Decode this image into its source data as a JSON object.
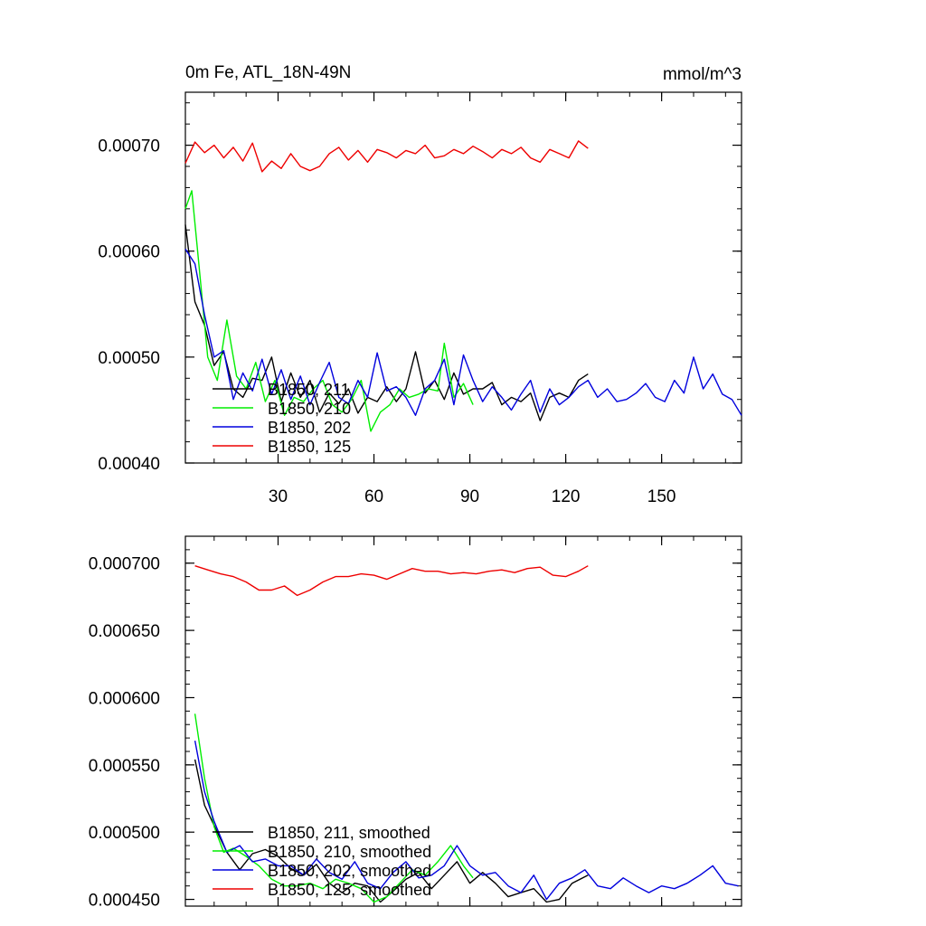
{
  "chart_data": [
    {
      "type": "line",
      "title_left": "0m Fe, ATL_18N-49N",
      "title_right": "mmol/m^3",
      "xlim": [
        1,
        175
      ],
      "ylim": [
        0.0004,
        0.00075
      ],
      "xticks": [
        30,
        60,
        90,
        120,
        150
      ],
      "xtick_labels": [
        "30",
        "60",
        "90",
        "120",
        "150"
      ],
      "yticks": [
        0.0004,
        0.0005,
        0.0006,
        0.0007
      ],
      "ytick_labels": [
        "0.00040",
        "0.00050",
        "0.00060",
        "0.00070"
      ],
      "grid": false,
      "legend_position": "bottom-left",
      "series": [
        {
          "name": "B1850, 211",
          "color": "#000000",
          "x": [
            1,
            4,
            7,
            10,
            13,
            16,
            19,
            22,
            25,
            28,
            31,
            34,
            37,
            40,
            43,
            46,
            49,
            52,
            55,
            58,
            61,
            64,
            67,
            70,
            73,
            76,
            79,
            82,
            85,
            88,
            91,
            94,
            97,
            100,
            103,
            106,
            109,
            112,
            115,
            118,
            121,
            124,
            127
          ],
          "values": [
            0.000625,
            0.000552,
            0.00053,
            0.000492,
            0.000505,
            0.00047,
            0.000462,
            0.00048,
            0.000478,
            0.0005,
            0.000458,
            0.000485,
            0.000462,
            0.000478,
            0.000448,
            0.000466,
            0.000456,
            0.00047,
            0.000447,
            0.000462,
            0.000458,
            0.000472,
            0.000458,
            0.00047,
            0.000505,
            0.000466,
            0.000478,
            0.00046,
            0.000485,
            0.000465,
            0.00047,
            0.00047,
            0.000476,
            0.000455,
            0.000462,
            0.000458,
            0.000466,
            0.00044,
            0.000462,
            0.000466,
            0.000462,
            0.000478,
            0.000484
          ]
        },
        {
          "name": "B1850, 210",
          "color": "#00ee00",
          "x": [
            1,
            3,
            5,
            8,
            11,
            14,
            17,
            20,
            23,
            26,
            29,
            32,
            35,
            38,
            41,
            44,
            47,
            50,
            53,
            56,
            59,
            62,
            65,
            68,
            71,
            74,
            77,
            80,
            82,
            85,
            88,
            91
          ],
          "values": [
            0.00064,
            0.000657,
            0.000595,
            0.0005,
            0.000478,
            0.000535,
            0.000482,
            0.00047,
            0.000495,
            0.000458,
            0.000478,
            0.000445,
            0.000462,
            0.000458,
            0.00047,
            0.000478,
            0.000455,
            0.000448,
            0.00046,
            0.000478,
            0.00043,
            0.000448,
            0.000455,
            0.00047,
            0.000462,
            0.000465,
            0.00047,
            0.000468,
            0.000513,
            0.000462,
            0.000475,
            0.000455
          ]
        },
        {
          "name": "B1850, 202",
          "color": "#0000dd",
          "x": [
            1,
            4,
            7,
            10,
            13,
            16,
            19,
            22,
            25,
            28,
            31,
            34,
            37,
            40,
            43,
            46,
            49,
            52,
            55,
            58,
            61,
            64,
            67,
            70,
            73,
            76,
            79,
            82,
            85,
            88,
            91,
            94,
            97,
            100,
            103,
            106,
            109,
            112,
            115,
            118,
            121,
            124,
            127,
            130,
            133,
            136,
            139,
            142,
            145,
            148,
            151,
            154,
            157,
            160,
            163,
            166,
            169,
            172,
            175
          ],
          "values": [
            0.000602,
            0.000588,
            0.00054,
            0.0005,
            0.000506,
            0.00046,
            0.000485,
            0.000468,
            0.000498,
            0.000465,
            0.000488,
            0.00046,
            0.000482,
            0.000455,
            0.000476,
            0.000495,
            0.000462,
            0.000456,
            0.000478,
            0.000462,
            0.000504,
            0.000468,
            0.000472,
            0.000462,
            0.000445,
            0.00047,
            0.000478,
            0.000498,
            0.000455,
            0.000502,
            0.000478,
            0.000458,
            0.000472,
            0.000462,
            0.00045,
            0.000465,
            0.000478,
            0.000448,
            0.00047,
            0.000455,
            0.000462,
            0.000472,
            0.000478,
            0.000462,
            0.00047,
            0.000458,
            0.00046,
            0.000466,
            0.000475,
            0.000462,
            0.000458,
            0.000478,
            0.000466,
            0.0005,
            0.00047,
            0.000484,
            0.000465,
            0.00046,
            0.000445
          ]
        },
        {
          "name": "B1850, 125",
          "color": "#ee0000",
          "x": [
            1,
            4,
            7,
            10,
            13,
            16,
            19,
            22,
            25,
            28,
            31,
            34,
            37,
            40,
            43,
            46,
            49,
            52,
            55,
            58,
            61,
            64,
            67,
            70,
            73,
            76,
            79,
            82,
            85,
            88,
            91,
            94,
            97,
            100,
            103,
            106,
            109,
            112,
            115,
            118,
            121,
            124,
            127
          ],
          "values": [
            0.000683,
            0.000703,
            0.000693,
            0.0007,
            0.000688,
            0.000698,
            0.000685,
            0.000702,
            0.000675,
            0.000685,
            0.000678,
            0.000692,
            0.00068,
            0.000676,
            0.00068,
            0.000692,
            0.000698,
            0.000686,
            0.000695,
            0.000684,
            0.000696,
            0.000693,
            0.000688,
            0.000695,
            0.000692,
            0.0007,
            0.000688,
            0.00069,
            0.000696,
            0.000692,
            0.000699,
            0.000694,
            0.000688,
            0.000696,
            0.000692,
            0.000698,
            0.000688,
            0.000684,
            0.000696,
            0.000692,
            0.000688,
            0.000704,
            0.000697
          ]
        }
      ]
    },
    {
      "type": "line",
      "xlim": [
        1,
        175
      ],
      "ylim": [
        0.000445,
        0.00072
      ],
      "xticks": [
        30,
        60,
        90,
        120,
        150
      ],
      "yticks": [
        0.00045,
        0.0005,
        0.00055,
        0.0006,
        0.00065,
        0.0007
      ],
      "ytick_labels": [
        "0.000450",
        "0.000500",
        "0.000550",
        "0.000600",
        "0.000650",
        "0.000700"
      ],
      "grid": false,
      "legend_position": "bottom-left",
      "series": [
        {
          "name": "B1850, 211, smoothed",
          "color": "#000000",
          "x": [
            4,
            7,
            10,
            14,
            18,
            22,
            26,
            30,
            34,
            38,
            42,
            46,
            50,
            54,
            58,
            62,
            66,
            70,
            74,
            78,
            82,
            86,
            90,
            94,
            98,
            102,
            106,
            110,
            114,
            118,
            122,
            127
          ],
          "values": [
            0.000554,
            0.00052,
            0.000505,
            0.000485,
            0.000472,
            0.000484,
            0.000487,
            0.000482,
            0.000473,
            0.000468,
            0.000476,
            0.000462,
            0.000455,
            0.000462,
            0.00046,
            0.000448,
            0.000456,
            0.000465,
            0.00047,
            0.000458,
            0.000468,
            0.000478,
            0.000462,
            0.00047,
            0.000462,
            0.000452,
            0.000455,
            0.000458,
            0.000448,
            0.00045,
            0.000462,
            0.000468
          ]
        },
        {
          "name": "B1850, 210, smoothed",
          "color": "#00ee00",
          "x": [
            4,
            7,
            10,
            13,
            16,
            20,
            24,
            28,
            32,
            36,
            40,
            44,
            48,
            52,
            56,
            60,
            64,
            68,
            72,
            76,
            80,
            84,
            88,
            91
          ],
          "values": [
            0.000588,
            0.00054,
            0.000504,
            0.000485,
            0.000488,
            0.000482,
            0.000475,
            0.000465,
            0.00046,
            0.00046,
            0.000462,
            0.000458,
            0.000465,
            0.000462,
            0.000458,
            0.000448,
            0.000452,
            0.000462,
            0.000472,
            0.000468,
            0.000478,
            0.00049,
            0.000475,
            0.000466
          ]
        },
        {
          "name": "B1850, 202, smoothed",
          "color": "#0000dd",
          "x": [
            4,
            7,
            10,
            14,
            18,
            22,
            26,
            30,
            34,
            38,
            42,
            46,
            50,
            54,
            58,
            62,
            66,
            70,
            74,
            78,
            82,
            86,
            90,
            94,
            98,
            102,
            106,
            110,
            114,
            118,
            122,
            126,
            130,
            134,
            138,
            142,
            146,
            150,
            154,
            158,
            162,
            166,
            170,
            174
          ],
          "values": [
            0.000568,
            0.00053,
            0.000508,
            0.000485,
            0.00049,
            0.000478,
            0.00048,
            0.000475,
            0.000475,
            0.000468,
            0.00048,
            0.00047,
            0.000465,
            0.000478,
            0.000462,
            0.000458,
            0.00047,
            0.000478,
            0.000466,
            0.000468,
            0.000475,
            0.00049,
            0.000475,
            0.000468,
            0.00047,
            0.00046,
            0.000455,
            0.000468,
            0.00045,
            0.000462,
            0.000466,
            0.000472,
            0.00046,
            0.000458,
            0.000466,
            0.00046,
            0.000455,
            0.00046,
            0.000458,
            0.000462,
            0.000468,
            0.000475,
            0.000462,
            0.00046
          ]
        },
        {
          "name": "B1850, 125, smoothed",
          "color": "#ee0000",
          "x": [
            4,
            8,
            12,
            16,
            20,
            24,
            28,
            32,
            36,
            40,
            44,
            48,
            52,
            56,
            60,
            64,
            68,
            72,
            76,
            80,
            84,
            88,
            92,
            96,
            100,
            104,
            108,
            112,
            116,
            120,
            124,
            127
          ],
          "values": [
            0.000698,
            0.000695,
            0.000692,
            0.00069,
            0.000686,
            0.00068,
            0.00068,
            0.000683,
            0.000676,
            0.00068,
            0.000686,
            0.00069,
            0.00069,
            0.000692,
            0.000691,
            0.000688,
            0.000692,
            0.000696,
            0.000694,
            0.000694,
            0.000692,
            0.000693,
            0.000692,
            0.000694,
            0.000695,
            0.000693,
            0.000696,
            0.000697,
            0.000691,
            0.00069,
            0.000694,
            0.000698
          ]
        }
      ]
    }
  ]
}
